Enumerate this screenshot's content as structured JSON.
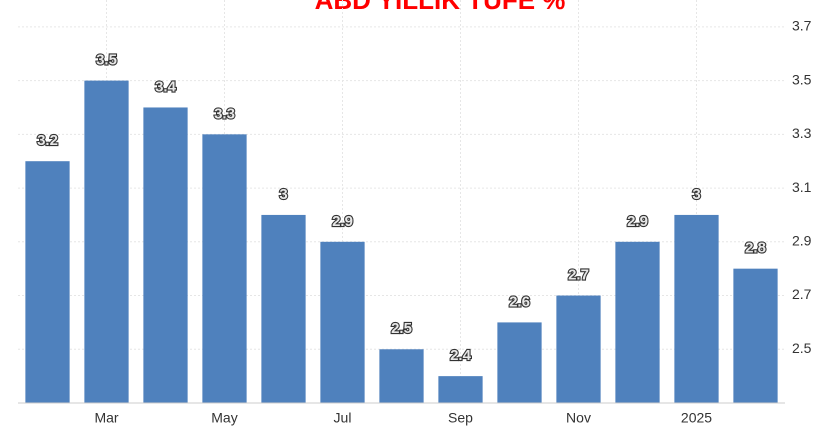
{
  "chart_data": {
    "type": "bar",
    "title": "ABD YILLIK TÜFE %",
    "categories": [
      null,
      "Mar",
      null,
      "May",
      null,
      "Jul",
      null,
      "Sep",
      null,
      "Nov",
      null,
      "2025",
      null
    ],
    "values": [
      3.2,
      3.5,
      3.4,
      3.3,
      3,
      2.9,
      2.5,
      2.4,
      2.6,
      2.7,
      2.9,
      3,
      2.8
    ],
    "color": "#4f81bd",
    "ylim": [
      2.3,
      3.8
    ],
    "yticks": [
      2.5,
      2.7,
      2.9,
      3.1,
      3.3,
      3.5,
      3.7
    ],
    "grid": true
  }
}
